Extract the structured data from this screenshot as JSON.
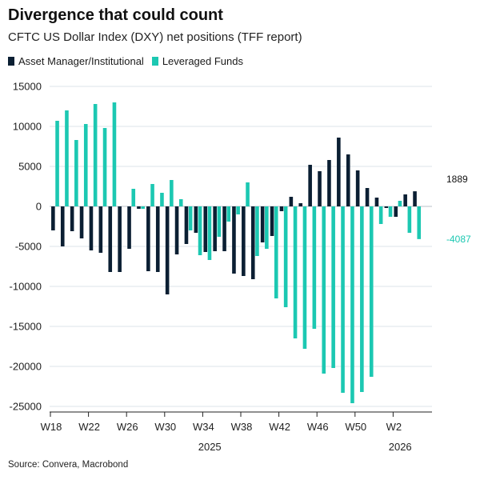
{
  "header": {
    "title": "Divergence that could count",
    "subtitle": "CFTC US Dollar Index (DXY) net positions (TFF report)"
  },
  "footer": {
    "source": "Source: Convera, Macrobond"
  },
  "colors": {
    "asset_manager": "#0b1f33",
    "leveraged_funds": "#1cc8b2",
    "grid": "#dde3e8",
    "axis_text": "#222222"
  },
  "chart_data": {
    "type": "bar",
    "title": "Divergence that could count",
    "subtitle": "CFTC US Dollar Index (DXY) net positions (TFF report)",
    "xlabel": "",
    "ylabel": "",
    "ylim": [
      -25000,
      15000
    ],
    "yticks": [
      15000,
      10000,
      5000,
      0,
      -5000,
      -10000,
      -15000,
      -20000,
      -25000
    ],
    "ytick_labels": [
      "15000",
      "10000",
      "5000",
      "0",
      "-5000",
      "-10000",
      "-15000",
      "-20000",
      "-25000"
    ],
    "grid": true,
    "legend": "top-left",
    "categories": [
      "W18",
      "W19",
      "W20",
      "W21",
      "W22",
      "W23",
      "W24",
      "W25",
      "W26",
      "W27",
      "W28",
      "W29",
      "W30",
      "W31",
      "W32",
      "W33",
      "W34",
      "W35",
      "W36",
      "W37",
      "W38",
      "W39",
      "W40",
      "W41",
      "W42",
      "W43",
      "W44",
      "W45",
      "W46",
      "W47",
      "W48",
      "W49",
      "W50",
      "W51",
      "W52",
      "W1",
      "W2",
      "W3",
      "W4"
    ],
    "xtick_labels": [
      {
        "index": 0,
        "label": "W18"
      },
      {
        "index": 4,
        "label": "W22"
      },
      {
        "index": 8,
        "label": "W26"
      },
      {
        "index": 12,
        "label": "W30"
      },
      {
        "index": 16,
        "label": "W34"
      },
      {
        "index": 20,
        "label": "W38"
      },
      {
        "index": 24,
        "label": "W42"
      },
      {
        "index": 28,
        "label": "W46"
      },
      {
        "index": 32,
        "label": "W50"
      },
      {
        "index": 36,
        "label": "W2"
      }
    ],
    "year_labels": [
      {
        "index": 18,
        "label": "2025"
      },
      {
        "index": 38,
        "label": "2026"
      }
    ],
    "series": [
      {
        "name": "Asset Manager/Institutional",
        "color": "#0b1f33",
        "values": [
          -3000,
          -5000,
          -3100,
          -4000,
          -5500,
          -5800,
          -8200,
          -8200,
          -5300,
          -300,
          -8100,
          -8200,
          -11000,
          -6000,
          -4700,
          -3300,
          -5700,
          -5600,
          -5600,
          -8400,
          -8700,
          -9100,
          -4500,
          -3700,
          -600,
          1200,
          400,
          5200,
          4400,
          5800,
          8600,
          6500,
          4500,
          2300,
          1100,
          -200,
          -1300,
          1500,
          1889
        ]
      },
      {
        "name": "Leveraged Funds",
        "color": "#1cc8b2",
        "values": [
          10700,
          12000,
          8300,
          10300,
          12800,
          9800,
          13000,
          0,
          2200,
          -300,
          2800,
          1700,
          3300,
          900,
          -3000,
          -6100,
          -6700,
          -3800,
          -1900,
          -1000,
          3000,
          -6200,
          -5300,
          -11500,
          -12600,
          -16500,
          -17800,
          -15300,
          -20900,
          -20200,
          -23300,
          -24600,
          -23200,
          -21300,
          -2200,
          -1300,
          700,
          -3300,
          -4087
        ]
      }
    ],
    "end_labels": [
      {
        "series": 0,
        "text": "1889"
      },
      {
        "series": 1,
        "text": "-4087"
      }
    ]
  }
}
